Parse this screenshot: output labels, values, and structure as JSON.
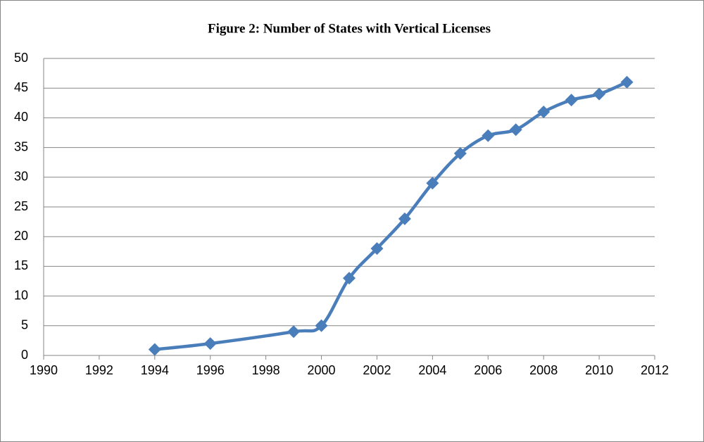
{
  "chart_data": {
    "type": "line",
    "title": "Figure 2: Number of States with Vertical Licenses",
    "x": [
      1994,
      1996,
      1999,
      2000,
      2001,
      2002,
      2003,
      2004,
      2005,
      2006,
      2007,
      2008,
      2009,
      2010,
      2011
    ],
    "series": [
      {
        "color": "#4a7ebb",
        "values": [
          1,
          2,
          4,
          5,
          13,
          18,
          23,
          29,
          34,
          37,
          38,
          41,
          43,
          44,
          46
        ]
      }
    ],
    "xlim": [
      1990,
      2012
    ],
    "xticks": [
      1990,
      1992,
      1994,
      1996,
      1998,
      2000,
      2002,
      2004,
      2006,
      2008,
      2010,
      2012
    ],
    "ylim": [
      0,
      50
    ],
    "yticks": [
      0,
      5,
      10,
      15,
      20,
      25,
      30,
      35,
      40,
      45,
      50
    ],
    "grid": true
  }
}
